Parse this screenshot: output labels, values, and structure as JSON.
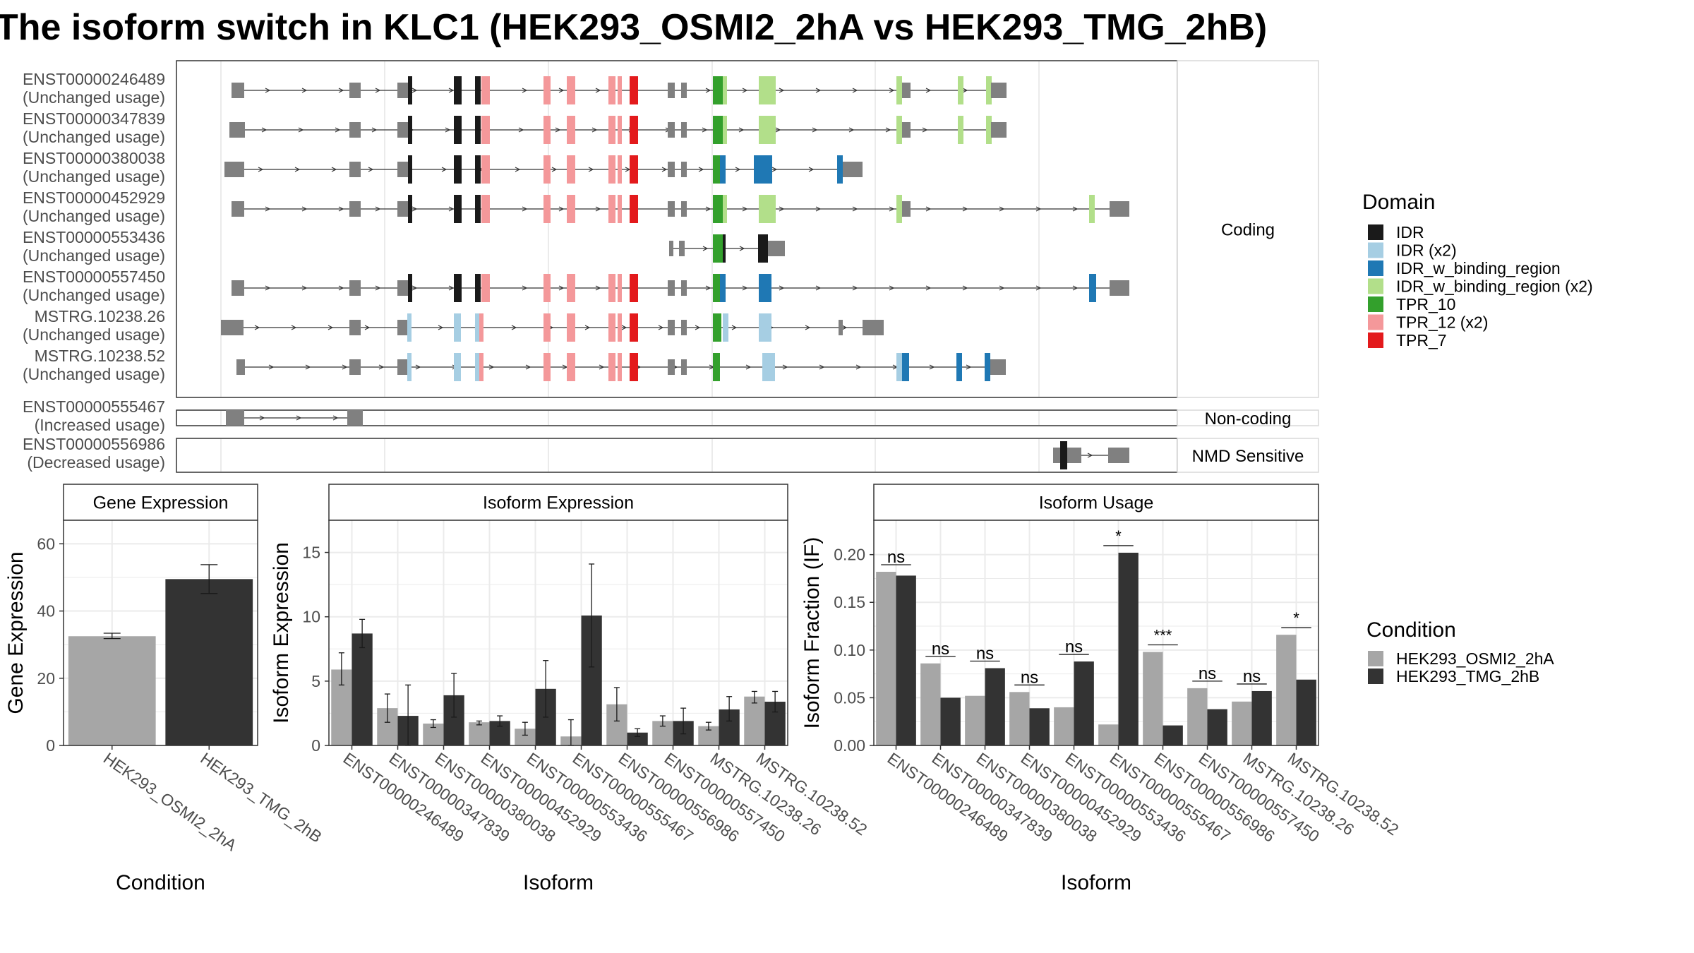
{
  "title": "The isoform switch in KLC1 (HEK293_OSMI2_2hA vs HEK293_TMG_2hB)",
  "colors": {
    "condition_a": "#a6a6a6",
    "condition_b": "#333333",
    "intron": "#333333",
    "utr": "#808080",
    "strip_fill": "#ffffff",
    "panel_border": "#333333",
    "grid": "#ebebeb"
  },
  "transcript_panel": {
    "facets": [
      {
        "label": "Coding",
        "transcripts": [
          {
            "id": "ENST00000246489",
            "status": "(Unchanged usage)"
          },
          {
            "id": "ENST00000347839",
            "status": "(Unchanged usage)"
          },
          {
            "id": "ENST00000380038",
            "status": "(Unchanged usage)"
          },
          {
            "id": "ENST00000452929",
            "status": "(Unchanged usage)"
          },
          {
            "id": "ENST00000553436",
            "status": "(Unchanged usage)"
          },
          {
            "id": "ENST00000557450",
            "status": "(Unchanged usage)"
          },
          {
            "id": "MSTRG.10238.26",
            "status": "(Unchanged usage)"
          },
          {
            "id": "MSTRG.10238.52",
            "status": "(Unchanged usage)"
          }
        ]
      },
      {
        "label": "Non-coding",
        "transcripts": [
          {
            "id": "ENST00000555467",
            "status": "(Increased usage)"
          }
        ]
      },
      {
        "label": "NMD Sensitive",
        "transcripts": [
          {
            "id": "ENST00000556986",
            "status": "(Decreased usage)"
          }
        ]
      }
    ]
  },
  "domain_legend": {
    "title": "Domain",
    "items": [
      {
        "label": "IDR",
        "color": "#1a1a1a"
      },
      {
        "label": "IDR (x2)",
        "color": "#a6cee3"
      },
      {
        "label": "IDR_w_binding_region",
        "color": "#1f78b4"
      },
      {
        "label": "IDR_w_binding_region (x2)",
        "color": "#b2df8a"
      },
      {
        "label": "TPR_10",
        "color": "#33a02c"
      },
      {
        "label": "TPR_12 (x2)",
        "color": "#f4989a"
      },
      {
        "label": "TPR_7",
        "color": "#e31a1c"
      }
    ]
  },
  "condition_legend": {
    "title": "Condition",
    "items": [
      {
        "label": "HEK293_OSMI2_2hA",
        "color": "#a6a6a6"
      },
      {
        "label": "HEK293_TMG_2hB",
        "color": "#333333"
      }
    ]
  },
  "chart_data": [
    {
      "type": "bar",
      "title": "Gene Expression",
      "xlabel": "Condition",
      "ylabel": "Gene Expression",
      "ylim": [
        0,
        67
      ],
      "yticks": [
        "0",
        "20",
        "40",
        "60"
      ],
      "categories": [
        "HEK293_OSMI2_2hA",
        "HEK293_TMG_2hB"
      ],
      "values": [
        32.5,
        49.5
      ],
      "errors": [
        [
          31.8,
          33.4
        ],
        [
          45.2,
          53.8
        ]
      ]
    },
    {
      "type": "bar",
      "title": "Isoform Expression",
      "xlabel": "Isoform",
      "ylabel": "Isoform Expression",
      "ylim": [
        0,
        17.5
      ],
      "yticks": [
        "0",
        "5",
        "10",
        "15"
      ],
      "categories": [
        "ENST00000246489",
        "ENST00000347839",
        "ENST00000380038",
        "ENST00000452929",
        "ENST00000553436",
        "ENST00000555467",
        "ENST00000556986",
        "ENST00000557450",
        "MSTRG.10238.26",
        "MSTRG.10238.52"
      ],
      "series": [
        {
          "name": "HEK293_OSMI2_2hA",
          "values": [
            5.9,
            2.9,
            1.7,
            1.8,
            1.3,
            0.7,
            3.2,
            1.9,
            1.5,
            3.8
          ],
          "errors": [
            [
              4.7,
              7.2
            ],
            [
              1.8,
              4.0
            ],
            [
              1.4,
              2.0
            ],
            [
              1.6,
              1.9
            ],
            [
              0.8,
              1.8
            ],
            [
              0.0,
              2.0
            ],
            [
              1.9,
              4.5
            ],
            [
              1.5,
              2.3
            ],
            [
              1.2,
              1.8
            ],
            [
              3.3,
              4.2
            ]
          ]
        },
        {
          "name": "HEK293_TMG_2hB",
          "values": [
            8.7,
            2.3,
            3.9,
            1.9,
            4.4,
            10.1,
            1.0,
            1.9,
            2.8,
            3.4
          ],
          "errors": [
            [
              7.6,
              9.8
            ],
            [
              0.0,
              4.7
            ],
            [
              2.2,
              5.6
            ],
            [
              1.5,
              2.3
            ],
            [
              2.2,
              6.6
            ],
            [
              6.1,
              14.1
            ],
            [
              0.7,
              1.3
            ],
            [
              0.9,
              2.9
            ],
            [
              1.9,
              3.8
            ],
            [
              2.6,
              4.2
            ]
          ]
        }
      ]
    },
    {
      "type": "bar",
      "title": "Isoform Usage",
      "xlabel": "Isoform",
      "ylabel": "Isoform Fraction (IF)",
      "ylim": [
        0,
        0.236
      ],
      "yticks": [
        "0.00",
        "0.05",
        "0.10",
        "0.15",
        "0.20"
      ],
      "categories": [
        "ENST00000246489",
        "ENST00000347839",
        "ENST00000380038",
        "ENST00000452929",
        "ENST00000553436",
        "ENST00000555467",
        "ENST00000556986",
        "ENST00000557450",
        "MSTRG.10238.26",
        "MSTRG.10238.52"
      ],
      "series": [
        {
          "name": "HEK293_OSMI2_2hA",
          "values": [
            0.182,
            0.086,
            0.052,
            0.056,
            0.04,
            0.022,
            0.098,
            0.06,
            0.046,
            0.116
          ]
        },
        {
          "name": "HEK293_TMG_2hB",
          "values": [
            0.178,
            0.05,
            0.081,
            0.039,
            0.088,
            0.202,
            0.021,
            0.038,
            0.057,
            0.069
          ]
        }
      ],
      "significance": [
        "ns",
        "ns",
        "ns",
        "ns",
        "ns",
        "*",
        "***",
        "ns",
        "ns",
        "*"
      ]
    }
  ]
}
